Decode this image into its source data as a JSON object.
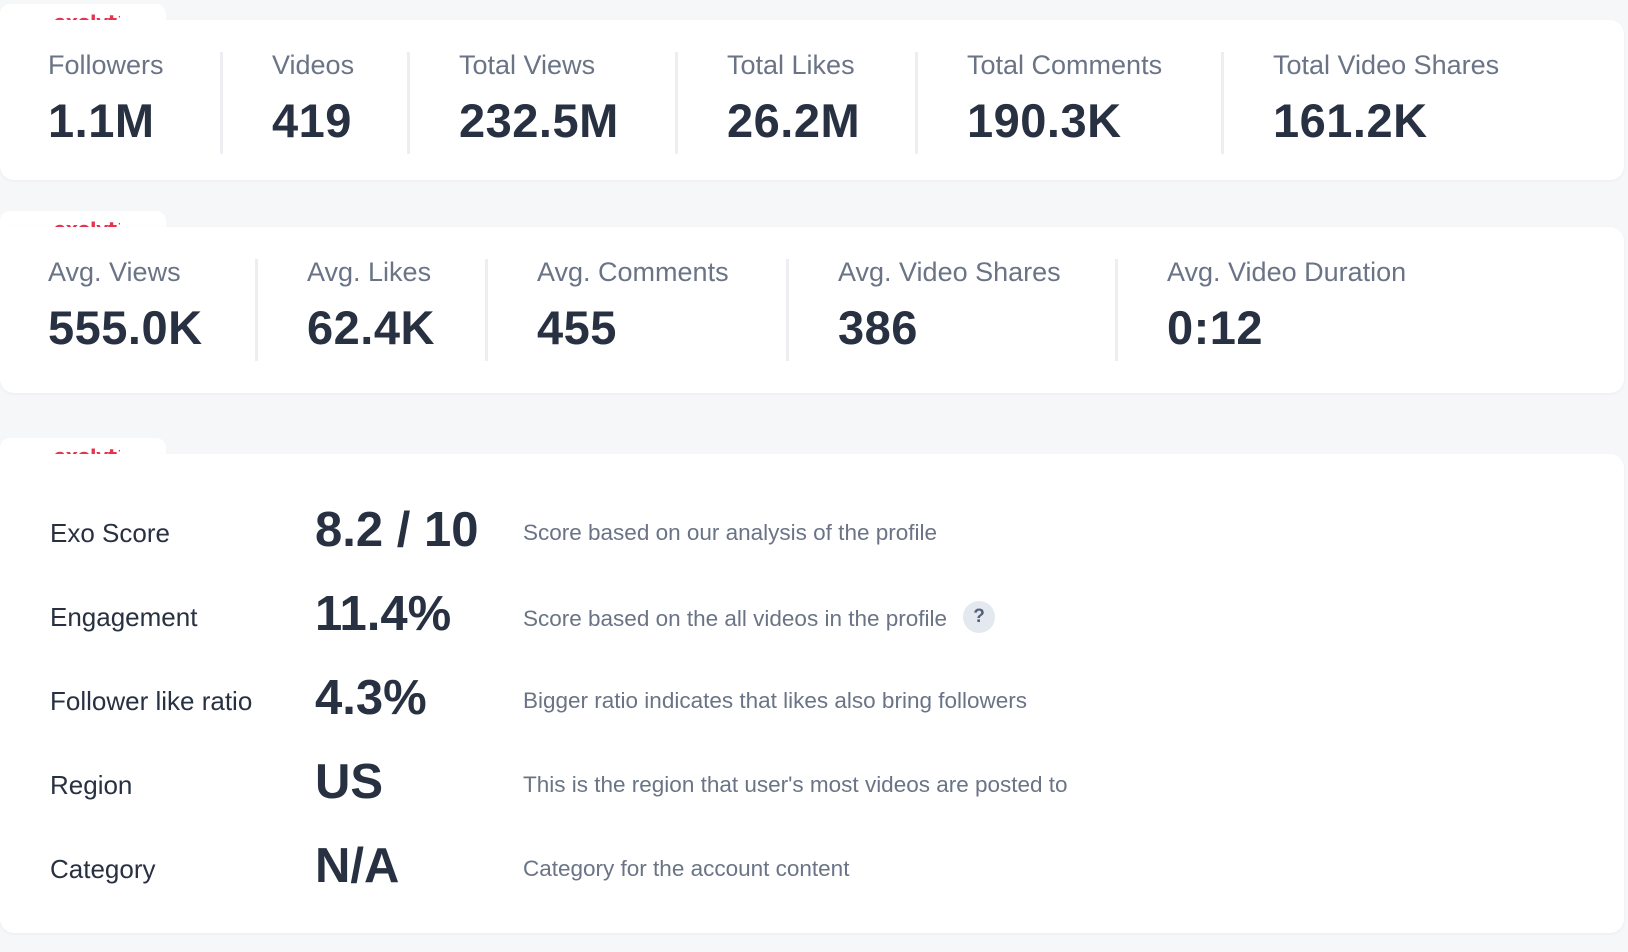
{
  "brand": {
    "logo": "exolyt",
    "accent_color": "#e8334f"
  },
  "totals": [
    {
      "label": "Followers",
      "value": "1.1M"
    },
    {
      "label": "Videos",
      "value": "419"
    },
    {
      "label": "Total Views",
      "value": "232.5M"
    },
    {
      "label": "Total Likes",
      "value": "26.2M"
    },
    {
      "label": "Total Comments",
      "value": "190.3K"
    },
    {
      "label": "Total Video Shares",
      "value": "161.2K"
    }
  ],
  "averages": [
    {
      "label": "Avg. Views",
      "value": "555.0K"
    },
    {
      "label": "Avg. Likes",
      "value": "62.4K"
    },
    {
      "label": "Avg. Comments",
      "value": "455"
    },
    {
      "label": "Avg. Video Shares",
      "value": "386"
    },
    {
      "label": "Avg. Video Duration",
      "value": "0:12"
    }
  ],
  "scores": [
    {
      "label": "Exo Score",
      "value": "8.2 / 10",
      "description": "Score based on our analysis of the profile"
    },
    {
      "label": "Engagement",
      "value": "11.4%",
      "description": "Score based on the all videos in the profile",
      "help": "?"
    },
    {
      "label": "Follower like ratio",
      "value": "4.3%",
      "description": "Bigger ratio indicates that likes also bring followers"
    },
    {
      "label": "Region",
      "value": "US",
      "description": "This is the region that user's most videos are posted to"
    },
    {
      "label": "Category",
      "value": "N/A",
      "description": "Category for the account content"
    }
  ]
}
